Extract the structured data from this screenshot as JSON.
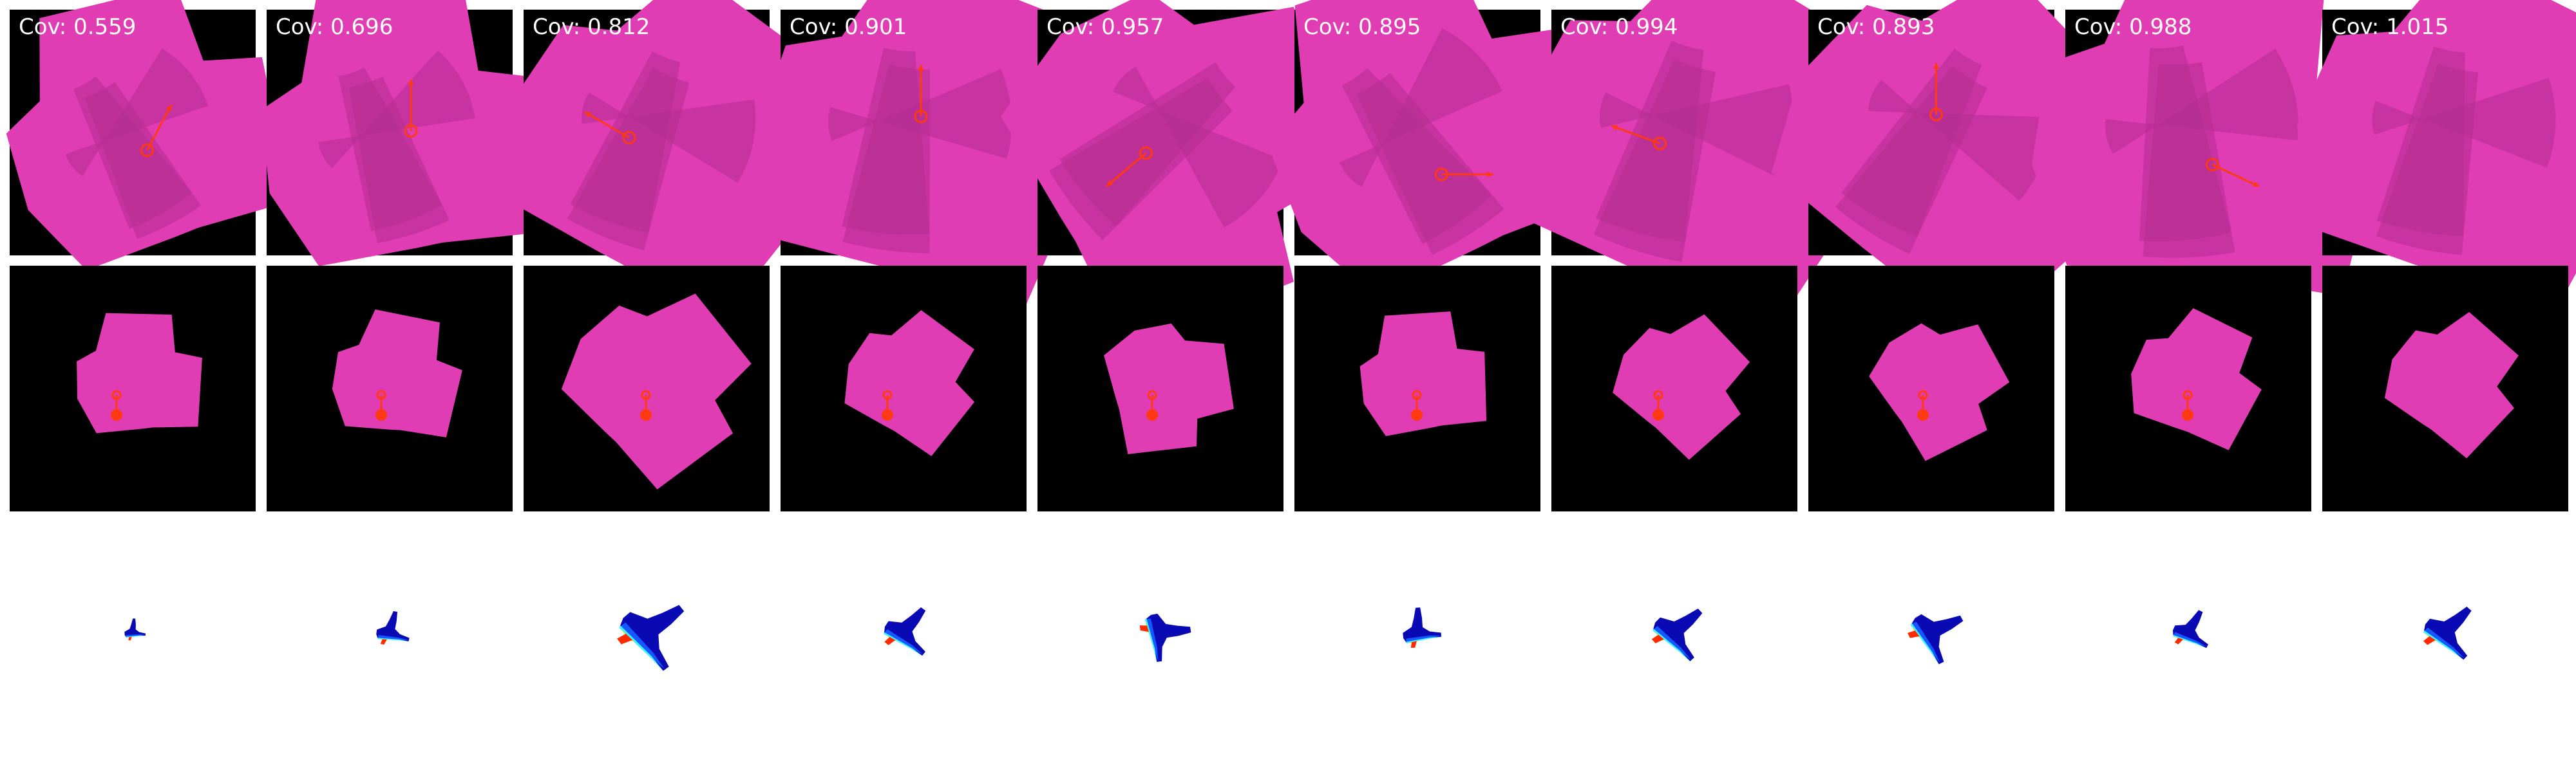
{
  "coverage_label_prefix": "Cov:",
  "panels": [
    {
      "coverage": "0.559",
      "rotation": -30,
      "scale": 0.78,
      "pick_angle": -62,
      "pick_point": [
        0.15,
        0.05
      ]
    },
    {
      "coverage": "0.696",
      "rotation": -20,
      "scale": 0.82,
      "pick_angle": -90,
      "pick_point": [
        0.22,
        -0.15
      ]
    },
    {
      "coverage": "0.812",
      "rotation": 20,
      "scale": 0.9,
      "pick_angle": -150,
      "pick_point": [
        -0.18,
        -0.08
      ]
    },
    {
      "coverage": "0.901",
      "rotation": 5,
      "scale": 0.95,
      "pick_angle": -90,
      "pick_point": [
        0.18,
        -0.3
      ]
    },
    {
      "coverage": "0.957",
      "rotation": 50,
      "scale": 0.95,
      "pick_angle": 140,
      "pick_point": [
        -0.15,
        0.08
      ]
    },
    {
      "coverage": "0.895",
      "rotation": -35,
      "scale": 0.92,
      "pick_angle": 0,
      "pick_point": [
        0.25,
        0.3
      ]
    },
    {
      "coverage": "0.994",
      "rotation": 15,
      "scale": 1.0,
      "pick_angle": 200,
      "pick_point": [
        -0.15,
        -0.02
      ]
    },
    {
      "coverage": "0.893",
      "rotation": 30,
      "scale": 0.95,
      "pick_angle": -90,
      "pick_point": [
        0.05,
        -0.32
      ]
    },
    {
      "coverage": "0.988",
      "rotation": -5,
      "scale": 1.0,
      "pick_angle": 25,
      "pick_point": [
        0.25,
        0.2
      ]
    },
    {
      "coverage": "1.015",
      "rotation": 10,
      "scale": 0.95,
      "pick_angle": null,
      "pick_point": null
    }
  ],
  "colors": {
    "background": "#000000",
    "cloth": "#ff55d4",
    "action": "#ff3a12",
    "label": "#ffffff",
    "depth_colormap": [
      "#0a0ab4",
      "#1658ff",
      "#3cf4ff",
      "#ffe600",
      "#ff2a00"
    ]
  },
  "rows": [
    "overhead-rgb",
    "robot-view-rgb",
    "depth-heatmap"
  ]
}
